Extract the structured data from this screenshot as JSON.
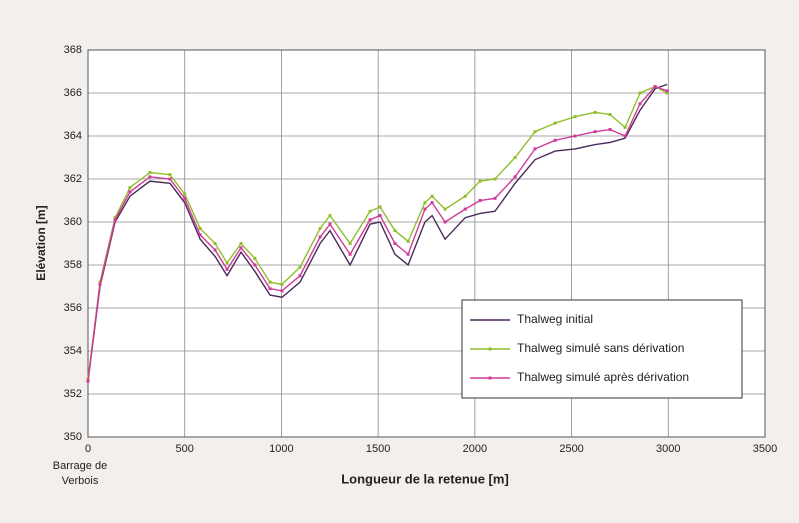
{
  "chart_data": {
    "type": "line",
    "xlabel": "Longueur de la retenue [m]",
    "ylabel": "Elévation [m]",
    "annotation": [
      "Barrage de",
      "Verbois"
    ],
    "x": [
      0,
      62,
      140,
      217,
      320,
      424,
      500,
      580,
      657,
      719,
      791,
      863,
      941,
      1003,
      1096,
      1200,
      1251,
      1355,
      1458,
      1510,
      1587,
      1655,
      1742,
      1779,
      1846,
      1950,
      2027,
      2104,
      2208,
      2311,
      2415,
      2518,
      2622,
      2699,
      2777,
      2854,
      2932,
      2994
    ],
    "series": [
      {
        "name": "Thalweg initial",
        "color": "#4b2a5a",
        "marker": false,
        "values": [
          352.6,
          357.0,
          360.0,
          361.2,
          361.9,
          361.8,
          360.9,
          359.2,
          358.4,
          357.5,
          358.6,
          357.7,
          356.6,
          356.5,
          357.2,
          359.0,
          359.6,
          358.0,
          359.9,
          360.0,
          358.5,
          358.0,
          360.0,
          360.3,
          359.2,
          360.2,
          360.4,
          360.5,
          361.8,
          362.9,
          363.3,
          363.4,
          363.6,
          363.7,
          363.9,
          365.2,
          366.2,
          366.4
        ]
      },
      {
        "name": "Thalweg simulé sans dérivation",
        "color": "#8fbf2a",
        "marker": true,
        "values": [
          352.7,
          357.2,
          360.2,
          361.6,
          362.3,
          362.2,
          361.3,
          359.7,
          359.0,
          358.1,
          359.0,
          358.3,
          357.2,
          357.1,
          357.9,
          359.7,
          360.3,
          359.0,
          360.5,
          360.7,
          359.6,
          359.1,
          360.9,
          361.2,
          360.6,
          361.2,
          361.9,
          362.0,
          363.0,
          364.2,
          364.6,
          364.9,
          365.1,
          365.0,
          364.4,
          366.0,
          366.3,
          366.0
        ]
      },
      {
        "name": "Thalweg simulé après dérivation",
        "color": "#d03a9a",
        "marker": true,
        "values": [
          352.6,
          357.1,
          360.1,
          361.4,
          362.1,
          362.0,
          361.1,
          359.4,
          358.7,
          357.8,
          358.8,
          358.0,
          356.9,
          356.8,
          357.5,
          359.3,
          359.9,
          358.5,
          360.1,
          360.3,
          359.0,
          358.5,
          360.6,
          360.9,
          360.0,
          360.6,
          361.0,
          361.1,
          362.1,
          363.4,
          363.8,
          364.0,
          364.2,
          364.3,
          364.0,
          365.5,
          366.3,
          366.1
        ]
      }
    ],
    "xlim": [
      0,
      3500
    ],
    "xticks": [
      0,
      500,
      1000,
      1500,
      2000,
      2500,
      3000,
      3500
    ],
    "ylim": [
      350,
      368
    ],
    "yticks": [
      350,
      352,
      354,
      356,
      358,
      360,
      362,
      364,
      366,
      368
    ],
    "grid": true
  }
}
